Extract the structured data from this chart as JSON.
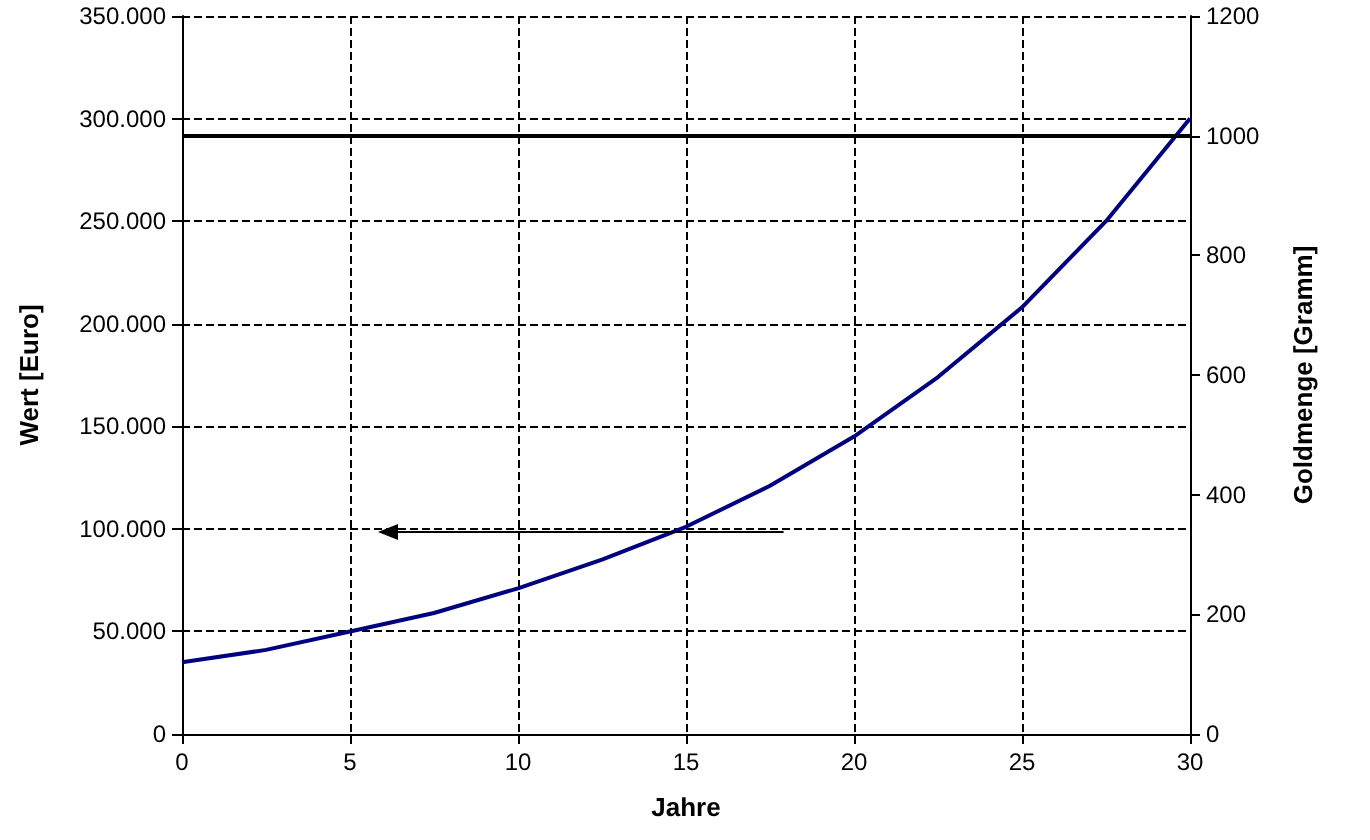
{
  "chart_data": {
    "type": "line",
    "xlabel": "Jahre",
    "ylabel": "Wert [Euro]",
    "y2label": "Goldmenge [Gramm]",
    "x": [
      0,
      2.5,
      5,
      7.5,
      10,
      12.5,
      15,
      17.5,
      20,
      22.5,
      25,
      27.5,
      30
    ],
    "series": [
      {
        "color": "#000080",
        "values": [
          35000,
          41000,
          50000,
          59000,
          71000,
          85000,
          101000,
          121000,
          145000,
          174000,
          208000,
          250000,
          300000
        ]
      }
    ],
    "xlim": [
      0,
      30
    ],
    "xticks": [
      0,
      5,
      10,
      15,
      20,
      25,
      30
    ],
    "ylim": [
      0,
      350000
    ],
    "yticks": [
      {
        "value": 0,
        "label": "0"
      },
      {
        "value": 50000,
        "label": "50.000"
      },
      {
        "value": 100000,
        "label": "100.000"
      },
      {
        "value": 150000,
        "label": "150.000"
      },
      {
        "value": 200000,
        "label": "200.000"
      },
      {
        "value": 250000,
        "label": "250.000"
      },
      {
        "value": 300000,
        "label": "300.000"
      },
      {
        "value": 350000,
        "label": "350.000"
      }
    ],
    "y2lim": [
      0,
      1200
    ],
    "y2ticks": [
      0,
      200,
      400,
      600,
      800,
      1000,
      1200
    ],
    "ref_lines": [
      {
        "axis": "y2",
        "value": 1000,
        "color": "#000000",
        "line_style": "solid"
      }
    ],
    "grid": true,
    "marker": "none",
    "line_style": "solid"
  }
}
